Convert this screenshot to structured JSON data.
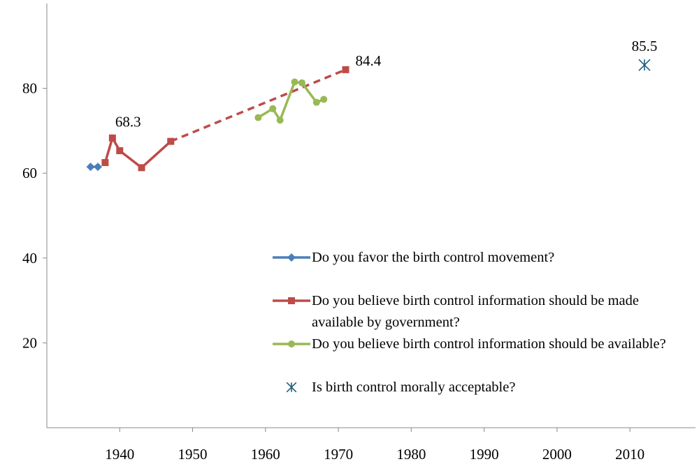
{
  "chart_data": {
    "type": "line",
    "xlim": [
      1930,
      2019
    ],
    "xticks": [
      1940,
      1950,
      1960,
      1970,
      1980,
      1990,
      2000,
      2010
    ],
    "ylim": [
      0,
      100
    ],
    "yticks": [
      20,
      40,
      60,
      80
    ],
    "series": [
      {
        "name": "Do you favor the birth control movement?",
        "color": "#4a7ebb",
        "marker": "diamond",
        "x": [
          1936,
          1937
        ],
        "values": [
          61.5,
          61.5
        ],
        "labels_at": []
      },
      {
        "name": "Do you believe birth control information should be made available by government?",
        "color": "#be4b48",
        "marker": "square",
        "x": [
          1938,
          1939,
          1940,
          1943,
          1947,
          1971
        ],
        "values": [
          62.5,
          68.3,
          65.3,
          61.3,
          67.5,
          84.4
        ],
        "labels_at": [
          1,
          5
        ],
        "dashed_segments": [
          4
        ]
      },
      {
        "name": "Do you believe birth control information should be available?",
        "color": "#98b954",
        "marker": "circle",
        "x": [
          1959,
          1961,
          1962,
          1964,
          1965,
          1967,
          1968
        ],
        "values": [
          73.1,
          75.2,
          72.5,
          81.5,
          81.3,
          76.7,
          77.4
        ],
        "labels_at": []
      },
      {
        "name": "Is birth control morally acceptable?",
        "color": "#1f5f7a",
        "marker": "asterisk",
        "line": false,
        "x": [
          2012
        ],
        "values": [
          85.5
        ],
        "labels_at": [
          0
        ]
      }
    ]
  }
}
